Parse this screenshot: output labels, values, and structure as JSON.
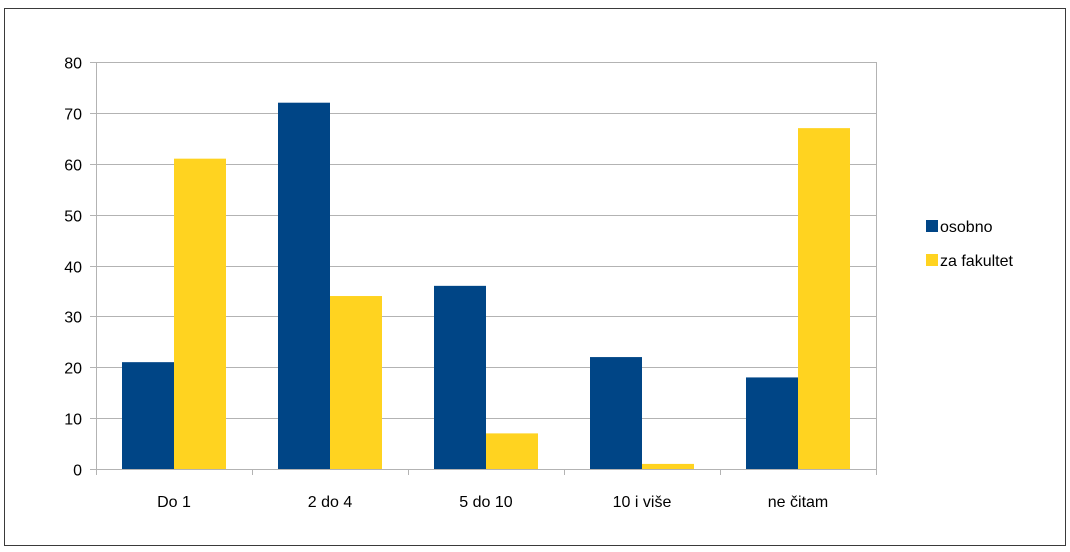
{
  "chart_data": {
    "type": "bar",
    "categories": [
      "Do 1",
      "2 do 4",
      "5 do 10",
      "10 i više",
      "ne čitam"
    ],
    "series": [
      {
        "name": "osobno",
        "values": [
          21,
          72,
          36,
          22,
          18
        ],
        "color": "#004586"
      },
      {
        "name": "za fakultet",
        "values": [
          61,
          34,
          7,
          1,
          67
        ],
        "color": "#ffd320"
      }
    ],
    "ylim": [
      0,
      80
    ],
    "yticks": [
      0,
      10,
      20,
      30,
      40,
      50,
      60,
      70,
      80
    ],
    "grid": true,
    "legend": "right"
  }
}
